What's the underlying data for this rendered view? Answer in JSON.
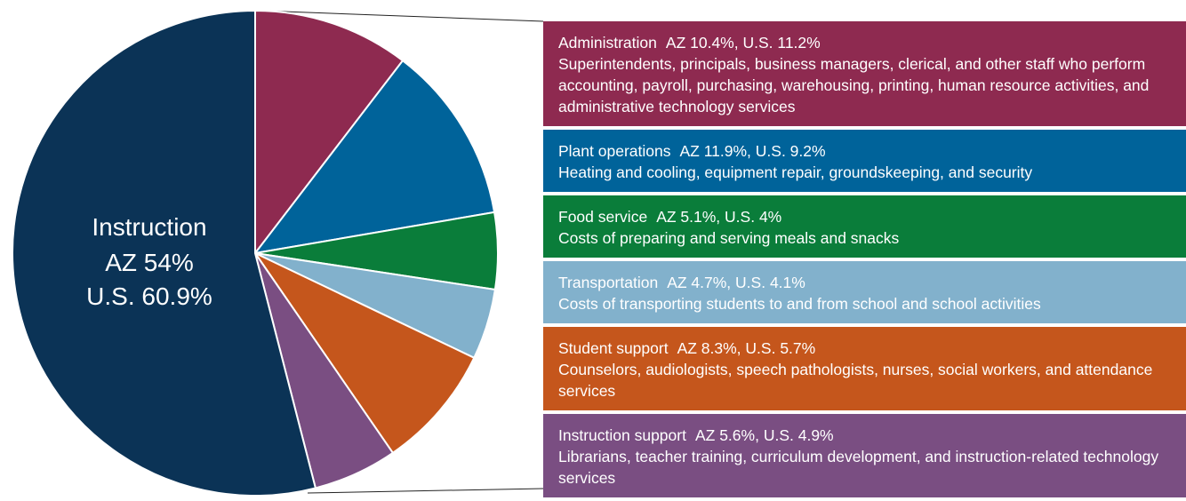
{
  "chart_data": {
    "type": "pie",
    "categories": [
      "Administration",
      "Plant operations",
      "Food service",
      "Transportation",
      "Student support",
      "Instruction support",
      "Instruction"
    ],
    "colors": [
      "#8e2a50",
      "#00639a",
      "#0a7d3a",
      "#82b1cc",
      "#c5561c",
      "#7a4e82",
      "#0b3356"
    ],
    "series": [
      {
        "name": "AZ",
        "values": [
          10.4,
          11.9,
          5.1,
          4.7,
          8.3,
          5.6,
          54
        ],
        "value_labels": [
          "AZ 10.4%,",
          "AZ 11.9%,",
          "AZ 5.1%,",
          "AZ 4.7%,",
          "AZ 8.3%,",
          "AZ 5.6%,",
          "AZ 54%"
        ]
      },
      {
        "name": "U.S.",
        "values": [
          11.2,
          9.2,
          4,
          4.1,
          5.7,
          4.9,
          60.9
        ],
        "value_labels": [
          "U.S. 11.2%",
          "U.S. 9.2%",
          "U.S. 4%",
          "U.S. 4.1%",
          "U.S. 5.7%",
          "U.S. 4.9%",
          "U.S. 60.9%"
        ]
      }
    ],
    "descriptions": [
      "Superintendents, principals, business managers, clerical, and other staff who perform accounting, payroll, purchasing, warehousing, printing, human resource activities, and administrative technology services",
      "Heating and cooling, equipment repair, groundskeeping, and security",
      "Costs of preparing and serving meals and snacks",
      "Costs of transporting students to and from school and school activities",
      "Counselors, audiologists, speech pathologists, nurses, social workers, and attendance services",
      "Librarians, teacher training, curriculum development, and instruction-related technology services",
      null
    ]
  }
}
